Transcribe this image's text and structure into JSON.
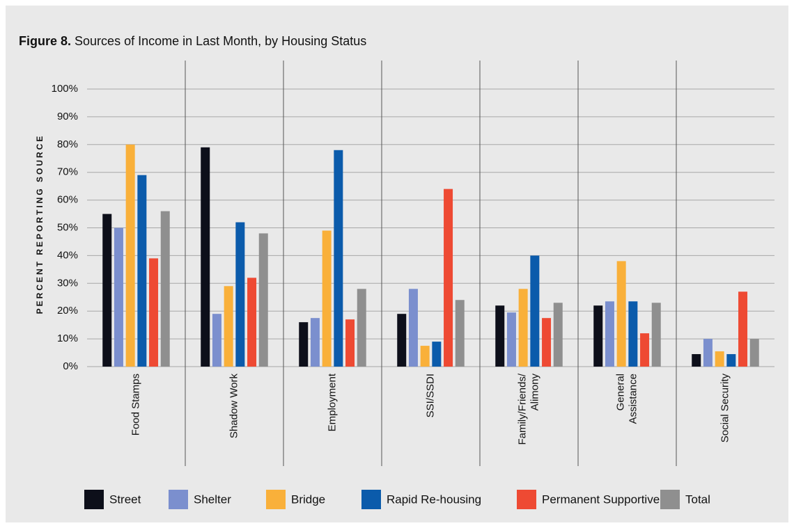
{
  "chart_data": {
    "type": "bar",
    "figure_label": "Figure 8.",
    "title": "Sources of Income in Last Month, by Housing Status",
    "y_label": "PERCENT REPORTING SOURCE",
    "categories": [
      "Food Stamps",
      "Shadow Work",
      "Employment",
      "SSI/SSDI",
      "Family/Friends/\nAlimony",
      "General\nAssistance",
      "Social Security"
    ],
    "series": [
      {
        "name": "Street",
        "color": "#0d0f1a",
        "values": [
          55,
          79,
          16,
          19,
          22,
          22,
          4.5
        ]
      },
      {
        "name": "Shelter",
        "color": "#7b8fce",
        "values": [
          50,
          19,
          17.5,
          28,
          19.5,
          23.5,
          10
        ]
      },
      {
        "name": "Bridge",
        "color": "#f9b03a",
        "values": [
          80,
          29,
          49,
          7.5,
          28,
          38,
          5.5
        ]
      },
      {
        "name": "Rapid Re-housing",
        "color": "#0b5bab",
        "values": [
          69,
          52,
          78,
          9,
          40,
          23.5,
          4.5
        ]
      },
      {
        "name": "Permanent Supportive",
        "color": "#ee4a33",
        "values": [
          39,
          32,
          17,
          64,
          17.5,
          12,
          27
        ]
      },
      {
        "name": "Total",
        "color": "#8f8f8f",
        "values": [
          56,
          48,
          28,
          24,
          23,
          23,
          10
        ]
      }
    ],
    "ylim": [
      0,
      100
    ],
    "yticks": [
      {
        "value": 0,
        "label": "0%"
      },
      {
        "value": 10,
        "label": "10%"
      },
      {
        "value": 20,
        "label": "20%"
      },
      {
        "value": 30,
        "label": "30%"
      },
      {
        "value": 40,
        "label": "40%"
      },
      {
        "value": 50,
        "label": "50%"
      },
      {
        "value": 60,
        "label": "60%"
      },
      {
        "value": 70,
        "label": "70%"
      },
      {
        "value": 80,
        "label": "80%"
      },
      {
        "value": 90,
        "label": "90%"
      },
      {
        "value": 100,
        "label": "100%"
      }
    ],
    "grid": true,
    "legend": "bottom"
  }
}
